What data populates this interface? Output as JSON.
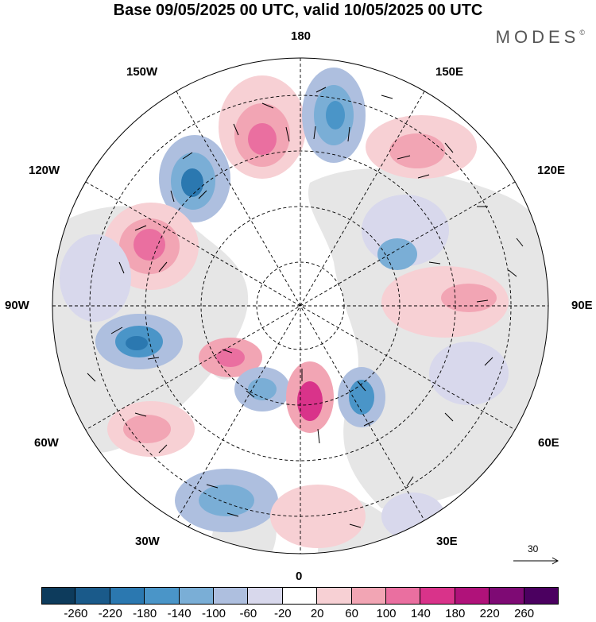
{
  "title": "Base 09/05/2025 00 UTC, valid 10/05/2025 00 UTC",
  "brand": {
    "name": "MODES",
    "mark": "©"
  },
  "map": {
    "projection": "north-polar-stereographic",
    "longitude_labels": {
      "lon_180": "180",
      "lon_150w": "150W",
      "lon_150e": "150E",
      "lon_120w": "120W",
      "lon_120e": "120E",
      "lon_90w": "90W",
      "lon_90e": "90E",
      "lon_60w": "60W",
      "lon_60e": "60E",
      "lon_30w": "30W",
      "lon_30e": "30E",
      "lon_0": "0"
    },
    "vector_reference": {
      "value": "30",
      "icon": "arrow-right-icon"
    },
    "land_color": "#e6e6e6",
    "ocean_color": "#ffffff"
  },
  "colorbar": {
    "tick_labels": [
      "-260",
      "-220",
      "-180",
      "-140",
      "-100",
      "-60",
      "-20",
      "20",
      "60",
      "100",
      "140",
      "180",
      "220",
      "260"
    ],
    "colors": [
      "#0d3b5c",
      "#1a5a8a",
      "#2b78b0",
      "#4a95c8",
      "#7aaed6",
      "#aebfdf",
      "#d8d8ec",
      "#ffffff",
      "#f7d0d4",
      "#f2a5b4",
      "#ea6fa0",
      "#d9338a",
      "#b0127a",
      "#7e0a74",
      "#4b0060"
    ]
  }
}
